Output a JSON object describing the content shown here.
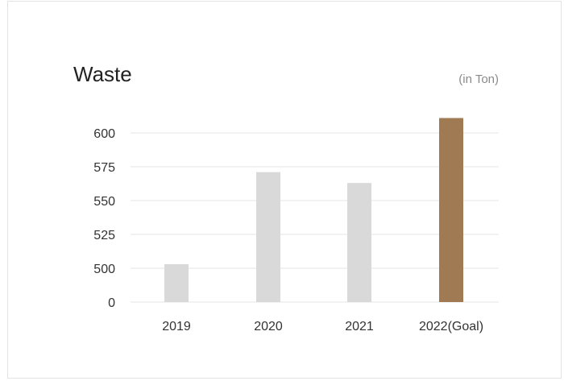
{
  "chart_data": {
    "type": "bar",
    "title": "Waste",
    "unit_label": "(in Ton)",
    "categories": [
      "2019",
      "2020",
      "2021",
      "2022(Goal)"
    ],
    "values": [
      503,
      571,
      563,
      611
    ],
    "y_ticks": [
      "0",
      "500",
      "525",
      "550",
      "575",
      "600"
    ],
    "y_tick_values": [
      475,
      500,
      525,
      550,
      575,
      600
    ],
    "ylim": [
      475,
      615
    ],
    "axis_break": "y-axis starts at 0 then jumps to 500",
    "grid": true,
    "bar_colors": [
      "#d9d9d9",
      "#d9d9d9",
      "#d9d9d9",
      "#a07a52"
    ]
  }
}
